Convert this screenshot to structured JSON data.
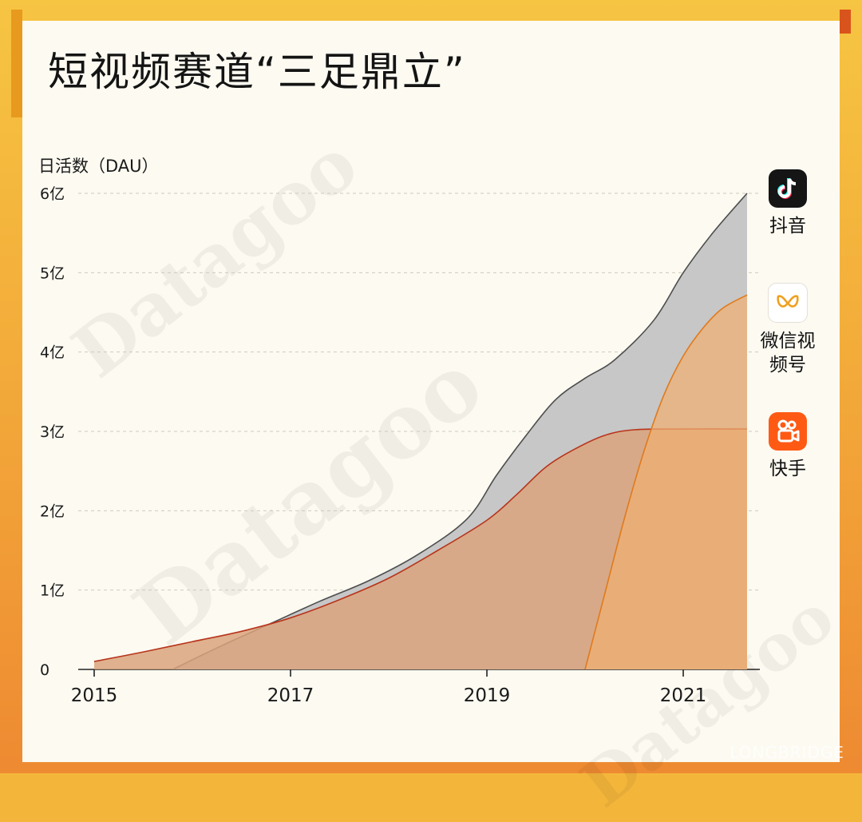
{
  "title": "短视频赛道“三足鼎立”",
  "brand": "LONGBRIDGE",
  "watermark": "Datagoo|财代数据",
  "chart_data": {
    "type": "area",
    "ylabel": "日活数（DAU）",
    "yticks": [
      "0",
      "1亿",
      "2亿",
      "3亿",
      "4亿",
      "5亿",
      "6亿"
    ],
    "ylim": [
      0,
      6
    ],
    "xticks": [
      2015,
      2017,
      2019,
      2021
    ],
    "xlim": [
      2015,
      2021.65
    ],
    "grid": "horizontal-dashed",
    "legend_position": "right",
    "unit": "亿",
    "series": [
      {
        "name": "抖音",
        "color": "#c4c4c4",
        "line_color": "#4d4d4d",
        "points": [
          [
            2015.8,
            0
          ],
          [
            2016.3,
            0.3
          ],
          [
            2016.8,
            0.58
          ],
          [
            2017.3,
            0.86
          ],
          [
            2017.8,
            1.12
          ],
          [
            2018.3,
            1.45
          ],
          [
            2018.8,
            1.9
          ],
          [
            2019.1,
            2.45
          ],
          [
            2019.4,
            2.95
          ],
          [
            2019.7,
            3.4
          ],
          [
            2020.0,
            3.67
          ],
          [
            2020.3,
            3.9
          ],
          [
            2020.7,
            4.4
          ],
          [
            2021.0,
            5.0
          ],
          [
            2021.3,
            5.5
          ],
          [
            2021.65,
            6.0
          ]
        ]
      },
      {
        "name": "快手",
        "color": "#d9a37c",
        "line_color": "#b8341b",
        "points": [
          [
            2015.0,
            0.1
          ],
          [
            2015.5,
            0.22
          ],
          [
            2016.0,
            0.35
          ],
          [
            2016.5,
            0.48
          ],
          [
            2017.0,
            0.65
          ],
          [
            2017.5,
            0.88
          ],
          [
            2018.0,
            1.15
          ],
          [
            2018.5,
            1.5
          ],
          [
            2019.0,
            1.88
          ],
          [
            2019.3,
            2.2
          ],
          [
            2019.6,
            2.55
          ],
          [
            2019.9,
            2.78
          ],
          [
            2020.2,
            2.95
          ],
          [
            2020.5,
            3.02
          ],
          [
            2021.0,
            3.03
          ],
          [
            2021.65,
            3.03
          ]
        ]
      },
      {
        "name": "微信视频号",
        "color": "#f0b072",
        "line_color": "#e07a1c",
        "points": [
          [
            2020.0,
            0
          ],
          [
            2020.2,
            0.95
          ],
          [
            2020.4,
            1.9
          ],
          [
            2020.6,
            2.75
          ],
          [
            2020.8,
            3.45
          ],
          [
            2021.0,
            3.95
          ],
          [
            2021.2,
            4.3
          ],
          [
            2021.4,
            4.55
          ],
          [
            2021.65,
            4.72
          ]
        ]
      }
    ]
  },
  "legend": [
    {
      "name": "抖音",
      "icon": "douyin-logo-icon",
      "bg": "#151515"
    },
    {
      "name": "微信视频号",
      "icon": "wechat-channels-logo-icon",
      "bg": "#ffffff"
    },
    {
      "name": "快手",
      "icon": "kuaishou-logo-icon",
      "bg": "#ff5a14"
    }
  ]
}
